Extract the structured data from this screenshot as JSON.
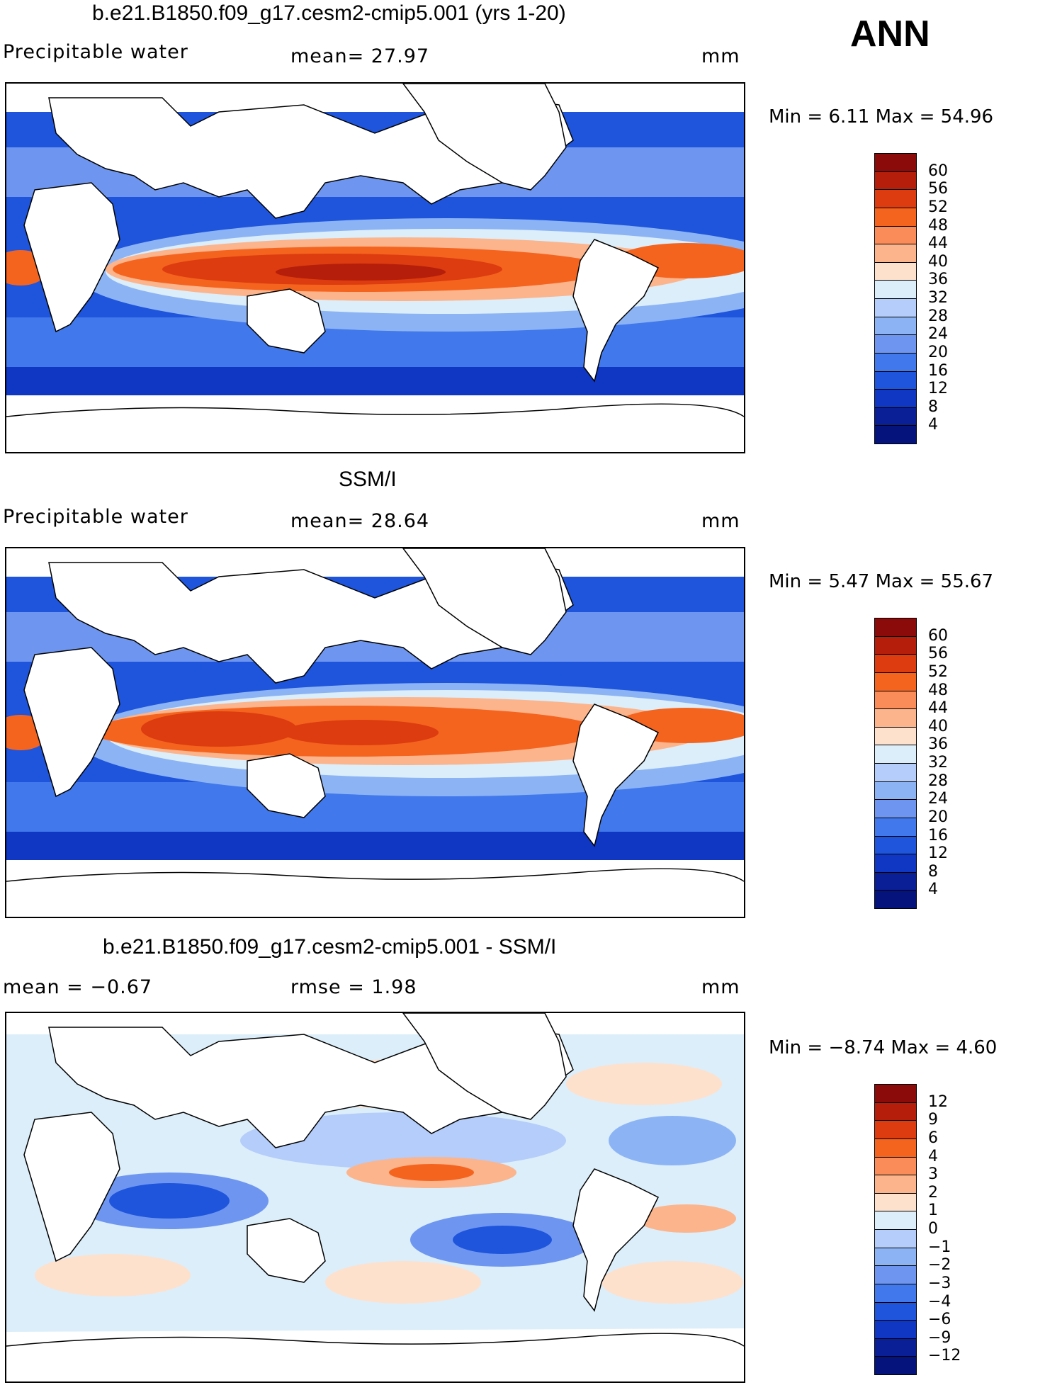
{
  "season": "ANN",
  "panels": [
    {
      "title": "b.e21.B1850.f09_g17.cesm2-cmip5.001 (yrs 1-20)",
      "variable": "Precipitable water",
      "stat1": "mean=   27.97",
      "stat2": "",
      "units": "mm",
      "minmax": "Min =    6.11  Max =   54.96",
      "colorbar": {
        "levels": [
          "60",
          "56",
          "52",
          "48",
          "44",
          "40",
          "36",
          "32",
          "28",
          "24",
          "20",
          "16",
          "12",
          "8",
          "4"
        ],
        "colors": [
          "#8b0a0a",
          "#b41e0a",
          "#dc3c0f",
          "#f5641e",
          "#fa8c5a",
          "#fcb48c",
          "#fde1cd",
          "#dceefa",
          "#b4cdfa",
          "#8cb4f5",
          "#6e96f0",
          "#4178eb",
          "#1e55dc",
          "#0f37c3",
          "#0a1e96",
          "#05147d"
        ]
      },
      "chart_data": {
        "type": "heatmap",
        "title": "b.e21.B1850.f09_g17.cesm2-cmip5.001 (yrs 1-20)",
        "field": "Precipitable water (mm)",
        "mean": 27.97,
        "min": 6.11,
        "max": 54.96,
        "contour_levels": [
          4,
          8,
          12,
          16,
          20,
          24,
          28,
          32,
          36,
          40,
          44,
          48,
          52,
          56,
          60
        ]
      }
    },
    {
      "title": "SSM/I",
      "variable": "Precipitable water",
      "stat1": "mean=   28.64",
      "stat2": "",
      "units": "mm",
      "minmax": "Min =    5.47  Max =   55.67",
      "colorbar": {
        "levels": [
          "60",
          "56",
          "52",
          "48",
          "44",
          "40",
          "36",
          "32",
          "28",
          "24",
          "20",
          "16",
          "12",
          "8",
          "4"
        ],
        "colors": [
          "#8b0a0a",
          "#b41e0a",
          "#dc3c0f",
          "#f5641e",
          "#fa8c5a",
          "#fcb48c",
          "#fde1cd",
          "#dceefa",
          "#b4cdfa",
          "#8cb4f5",
          "#6e96f0",
          "#4178eb",
          "#1e55dc",
          "#0f37c3",
          "#0a1e96",
          "#05147d"
        ]
      },
      "chart_data": {
        "type": "heatmap",
        "title": "SSM/I",
        "field": "Precipitable water (mm)",
        "mean": 28.64,
        "min": 5.47,
        "max": 55.67,
        "contour_levels": [
          4,
          8,
          12,
          16,
          20,
          24,
          28,
          32,
          36,
          40,
          44,
          48,
          52,
          56,
          60
        ]
      }
    },
    {
      "title": "b.e21.B1850.f09_g17.cesm2-cmip5.001 - SSM/I",
      "variable": "",
      "stat1": "mean =   −0.67",
      "stat2": "rmse =    1.98",
      "units": "mm",
      "minmax": "Min =  −8.74  Max =    4.60",
      "colorbar": {
        "levels": [
          "12",
          "9",
          "6",
          "4",
          "3",
          "2",
          "1",
          "0",
          "−1",
          "−2",
          "−3",
          "−4",
          "−6",
          "−9",
          "−12"
        ],
        "colors": [
          "#8b0a0a",
          "#b41e0a",
          "#dc3c0f",
          "#f5641e",
          "#fa8c5a",
          "#fcb48c",
          "#fde1cd",
          "#dceefa",
          "#b4cdfa",
          "#8cb4f5",
          "#6e96f0",
          "#4178eb",
          "#1e55dc",
          "#0f37c3",
          "#0a1e96",
          "#05147d"
        ]
      },
      "chart_data": {
        "type": "heatmap",
        "title": "b.e21.B1850.f09_g17.cesm2-cmip5.001 - SSM/I",
        "field": "Precipitable water difference (mm)",
        "mean": -0.67,
        "rmse": 1.98,
        "min": -8.74,
        "max": 4.6,
        "contour_levels": [
          -12,
          -9,
          -6,
          -4,
          -3,
          -2,
          -1,
          0,
          1,
          2,
          3,
          4,
          6,
          9,
          12
        ]
      }
    }
  ]
}
